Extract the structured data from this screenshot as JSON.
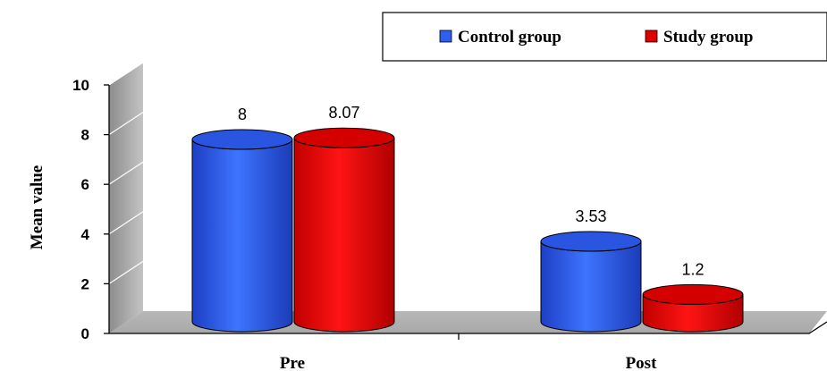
{
  "chart_data": {
    "type": "bar",
    "categories": [
      "Pre",
      "Post"
    ],
    "series": [
      {
        "name": "Control group",
        "values": [
          8,
          3.53
        ],
        "labels": [
          "8",
          "3.53"
        ],
        "color": "#2f5ff0"
      },
      {
        "name": "Study group",
        "values": [
          8.07,
          1.2
        ],
        "labels": [
          "8.07",
          "1.2"
        ],
        "color": "#e00000"
      }
    ],
    "ylabel": "Mean value",
    "ylim": [
      0,
      10
    ],
    "yticks": [
      "0",
      "2",
      "4",
      "6",
      "8",
      "10"
    ],
    "grid": true,
    "legend_position": "top-right",
    "style": "3d-cylinder"
  }
}
